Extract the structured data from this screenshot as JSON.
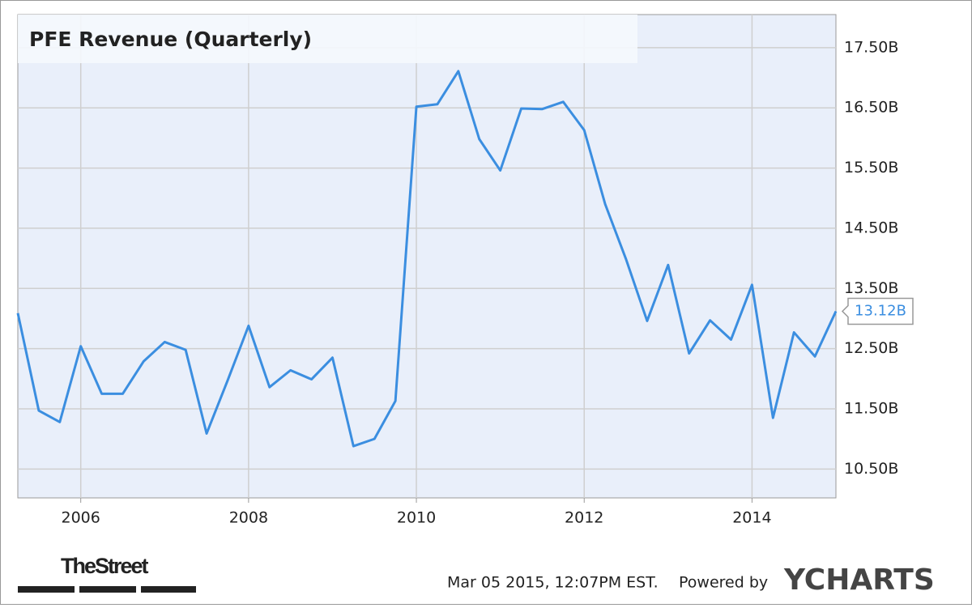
{
  "chart_data": {
    "type": "line",
    "title": "PFE Revenue (Quarterly)",
    "x": [
      2005.25,
      2005.5,
      2005.75,
      2006.0,
      2006.25,
      2006.5,
      2006.75,
      2007.0,
      2007.25,
      2007.5,
      2007.75,
      2008.0,
      2008.25,
      2008.5,
      2008.75,
      2009.0,
      2009.25,
      2009.5,
      2009.75,
      2010.0,
      2010.25,
      2010.5,
      2010.75,
      2011.0,
      2011.25,
      2011.5,
      2011.75,
      2012.0,
      2012.25,
      2012.5,
      2012.75,
      2013.0,
      2013.25,
      2013.5,
      2013.75,
      2014.0,
      2014.25,
      2014.5,
      2014.75,
      2015.0
    ],
    "series": [
      {
        "color": "#3b8ee0",
        "values": [
          13.09,
          11.47,
          11.28,
          12.54,
          11.75,
          11.75,
          12.29,
          12.61,
          12.48,
          11.09,
          11.97,
          12.88,
          11.86,
          12.14,
          11.99,
          12.35,
          10.88,
          11.0,
          11.63,
          16.52,
          16.56,
          17.11,
          15.98,
          15.46,
          16.49,
          16.48,
          16.6,
          16.13,
          14.9,
          13.98,
          12.96,
          13.89,
          12.42,
          12.97,
          12.65,
          13.56,
          11.35,
          12.77,
          12.37,
          13.12
        ],
        "value_labels": [
          null,
          null,
          null,
          null,
          null,
          null,
          null,
          null,
          null,
          null,
          null,
          null,
          null,
          null,
          null,
          null,
          null,
          null,
          null,
          null,
          null,
          null,
          null,
          null,
          null,
          null,
          null,
          null,
          null,
          null,
          null,
          null,
          null,
          null,
          null,
          null,
          null,
          null,
          null,
          "13.12B"
        ]
      }
    ],
    "xlim": [
      2005.25,
      2015.0
    ],
    "xticks": [
      2006,
      2008,
      2010,
      2012,
      2014
    ],
    "ylim": [
      10.02,
      18.05
    ],
    "yticks": [
      {
        "value": 10.5,
        "label": "10.50B"
      },
      {
        "value": 11.5,
        "label": "11.50B"
      },
      {
        "value": 12.5,
        "label": "12.50B"
      },
      {
        "value": 13.5,
        "label": "13.50B"
      },
      {
        "value": 14.5,
        "label": "14.50B"
      },
      {
        "value": 15.5,
        "label": "15.50B"
      },
      {
        "value": 16.5,
        "label": "16.50B"
      },
      {
        "value": 17.5,
        "label": "17.50B"
      }
    ],
    "grid": true,
    "source": "TheStreet",
    "timestamp": "Mar 05 2015, 12:07PM EST.",
    "credit": "Powered by",
    "brand": "YCHARTS"
  }
}
